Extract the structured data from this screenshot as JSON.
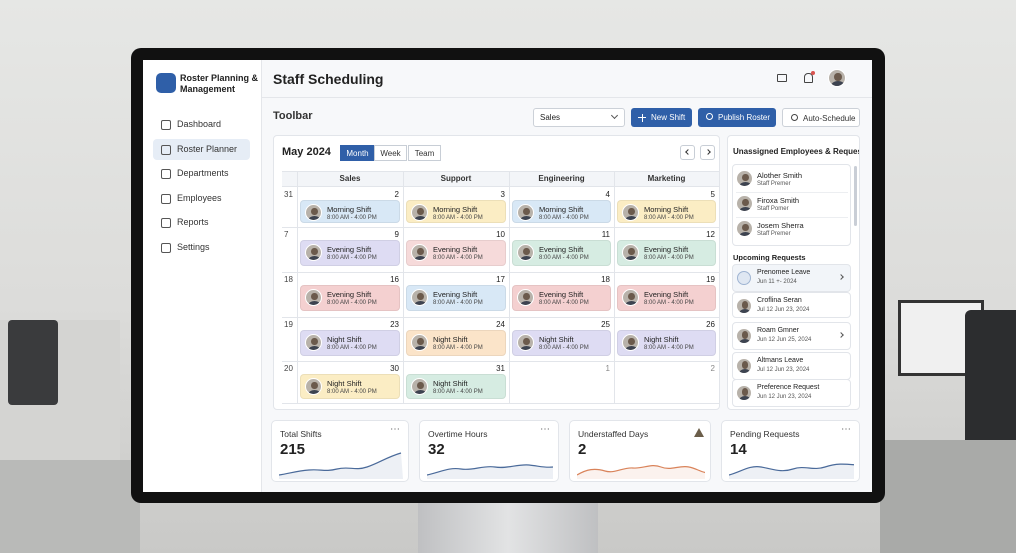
{
  "sidebar": {
    "title": "Roster Planning & Management",
    "nav": [
      "Dashboard",
      "Roster Planner",
      "Departments",
      "Employees",
      "Reports",
      "Settings"
    ]
  },
  "header": {
    "title": "Staff Scheduling"
  },
  "toolbar": {
    "label": "Toolbar",
    "department": "Sales",
    "buttons": [
      "New Shift",
      "Publish Roster",
      "Auto-Schedule"
    ]
  },
  "calendar": {
    "month": "May 2024",
    "views": [
      "Month",
      "Week",
      "Team"
    ],
    "columns": [
      "Sales",
      "Support",
      "Engineering",
      "Marketing"
    ],
    "rows": [
      {
        "week": 31,
        "cells": [
          {
            "day": 2,
            "shift": "Morning Shift",
            "time": "8:00 AM - 4:00 PM",
            "color": "#d8e8f6"
          },
          {
            "day": 3,
            "shift": "Morning Shift",
            "time": "8:00 AM - 4:00 PM",
            "color": "#fbedc4"
          },
          {
            "day": 4,
            "shift": "Morning Shift",
            "time": "8:00 AM - 4:00 PM",
            "color": "#d8e8f6"
          },
          {
            "day": 5,
            "shift": "Morning Shift",
            "time": "8:00 AM - 4:00 PM",
            "color": "#fbedc4"
          }
        ]
      },
      {
        "week": 7,
        "cells": [
          {
            "day": 9,
            "shift": "Evening Shift",
            "time": "8:00 AM - 4:00 PM",
            "color": "#dedcf3"
          },
          {
            "day": 10,
            "shift": "Evening Shift",
            "time": "8:00 AM - 4:00 PM",
            "color": "#f6dada"
          },
          {
            "day": 11,
            "shift": "Evening Shift",
            "time": "8:00 AM - 4:00 PM",
            "color": "#d6ece2"
          },
          {
            "day": 12,
            "shift": "Evening Shift",
            "time": "8:00 AM - 4:00 PM",
            "color": "#d6ece2"
          }
        ]
      },
      {
        "week": 18,
        "cells": [
          {
            "day": 16,
            "shift": "Evening Shift",
            "time": "8:00 AM - 4:00 PM",
            "color": "#f4d0d0"
          },
          {
            "day": 17,
            "shift": "Evening Shift",
            "time": "8:00 AM - 4:00 PM",
            "color": "#d8e8f6"
          },
          {
            "day": 18,
            "shift": "Evening Shift",
            "time": "8:00 AM - 4:00 PM",
            "color": "#f4d0d0"
          },
          {
            "day": 19,
            "shift": "Evening Shift",
            "time": "8:00 AM - 4:00 PM",
            "color": "#f4d0d0"
          }
        ]
      },
      {
        "week": 19,
        "cells": [
          {
            "day": 23,
            "shift": "Night Shift",
            "time": "8:00 AM - 4:00 PM",
            "color": "#dedcf3"
          },
          {
            "day": 24,
            "shift": "Night Shift",
            "time": "8:00 AM - 4:00 PM",
            "color": "#fbe4c9"
          },
          {
            "day": 25,
            "shift": "Night Shift",
            "time": "8:00 AM - 4:00 PM",
            "color": "#dedcf3"
          },
          {
            "day": 26,
            "shift": "Night Shift",
            "time": "8:00 AM - 4:00 PM",
            "color": "#dedcf3"
          }
        ]
      },
      {
        "week": 20,
        "cells": [
          {
            "day": 30,
            "shift": "Night Shift",
            "time": "8:00 AM - 4:00 PM",
            "color": "#fbedc4"
          },
          {
            "day": 31,
            "shift": "Night Shift",
            "time": "8:00 AM - 4:00 PM",
            "color": "#d6ece2"
          },
          {
            "day": 1
          },
          {
            "day": 2
          }
        ]
      }
    ]
  },
  "panel": {
    "title": "Unassigned Employees & Requests",
    "employees": [
      {
        "name": "Alother Smith",
        "role": "Staff Premer"
      },
      {
        "name": "Firoxa Smith",
        "role": "Staff Pomer"
      },
      {
        "name": "Josem Sherra",
        "role": "Staff Premer"
      }
    ],
    "requests_title": "Upcoming Requests",
    "requests": [
      {
        "title": "Prenomee Leave",
        "date": "Jun 11 +- 2024"
      },
      {
        "title": "Croflina Seran",
        "date": "Jul 12 Jun 23, 2024"
      },
      {
        "title": "Roam Gmner",
        "date": "Jun 12 Jun 25, 2024"
      },
      {
        "title": "Altmans Leave",
        "date": "Jul 12 Jun 23, 2024"
      },
      {
        "title": "Preference Request",
        "date": "Jun 12 Jun 23, 2024"
      }
    ]
  },
  "stats": [
    {
      "label": "Total Shifts",
      "value": 215,
      "color": "#4a6a9a"
    },
    {
      "label": "Overtime Hours",
      "value": 32,
      "color": "#4a6a9a"
    },
    {
      "label": "Understaffed Days",
      "value": 2,
      "color": "#d9835a"
    },
    {
      "label": "Pending Requests",
      "value": 14,
      "color": "#4a6a9a"
    }
  ]
}
